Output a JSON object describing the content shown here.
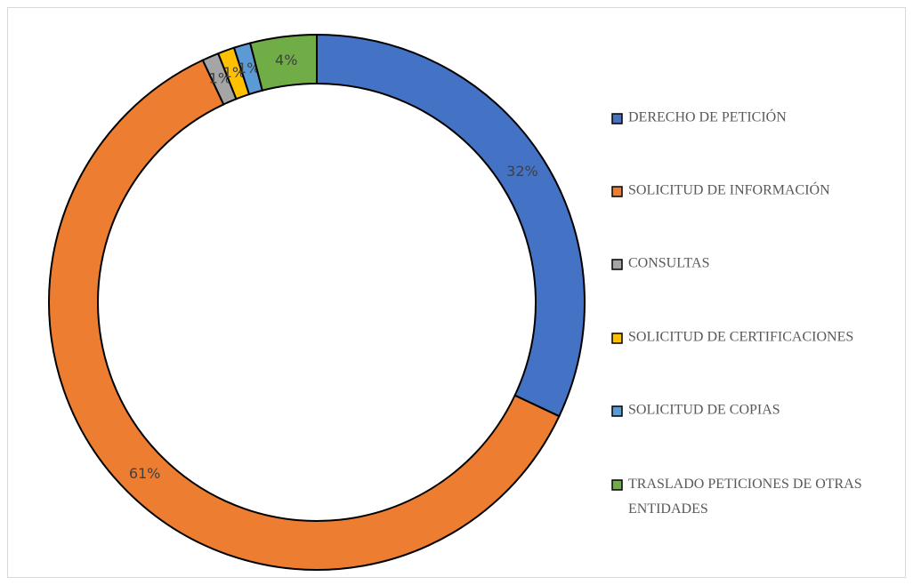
{
  "chart_data": {
    "type": "donut",
    "categories": [
      "DERECHO DE PETICIÓN",
      "SOLICITUD DE INFORMACIÓN",
      "CONSULTAS",
      "SOLICITUD DE CERTIFICACIONES",
      "SOLICITUD DE COPIAS",
      "TRASLADO PETICIONES DE OTRAS ENTIDADES"
    ],
    "values": [
      32,
      61,
      1,
      1,
      1,
      4
    ],
    "value_labels": [
      "32%",
      "61%",
      "1%",
      "1%",
      "1%",
      "4%"
    ],
    "colors": [
      "#4472c4",
      "#ed7d31",
      "#a5a5a5",
      "#ffc000",
      "#5b9bd5",
      "#70ad47"
    ],
    "legend": "right"
  }
}
